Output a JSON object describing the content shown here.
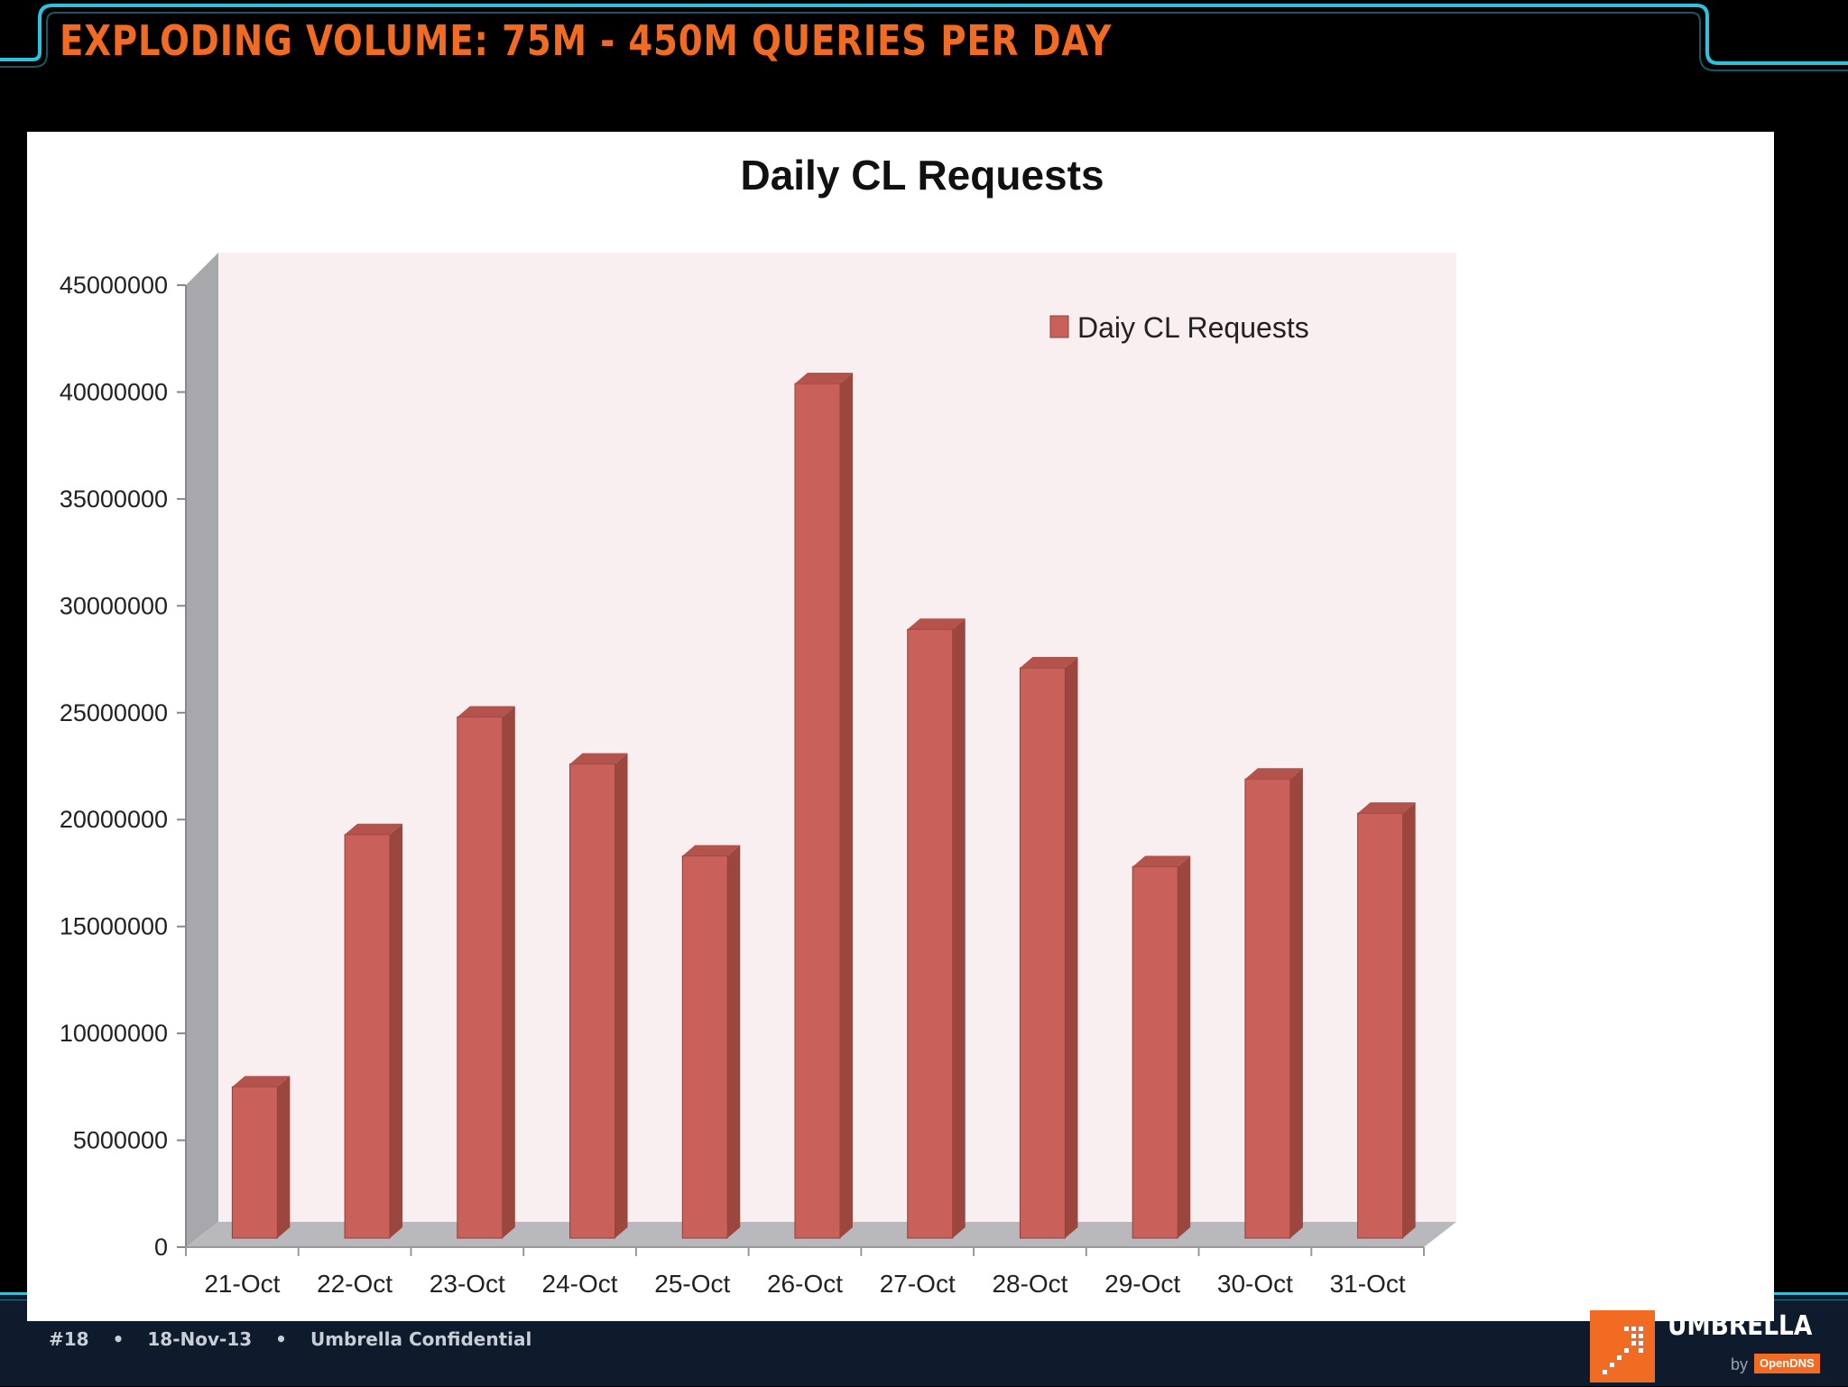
{
  "slide": {
    "title": "EXPLODING VOLUME: 75M - 450M QUERIES PER DAY",
    "footer": {
      "slide_number": "#18",
      "date": "18-Nov-13",
      "confidentiality": "Umbrella Confidential",
      "separator": "•"
    },
    "logo": {
      "wordmark": "UMBRELLA",
      "by": "by",
      "brand": "OpenDNS"
    },
    "colors": {
      "title": "#f26b22",
      "frame": "#2bc4df",
      "footer_bg": "#0d1b2c",
      "bar": "#c9605a",
      "plot_bg": "#f9eef0"
    }
  },
  "chart_data": {
    "type": "bar",
    "style": "3d-column",
    "title": "Daily CL Requests",
    "xlabel": "",
    "ylabel": "",
    "categories": [
      "21-Oct",
      "22-Oct",
      "23-Oct",
      "24-Oct",
      "25-Oct",
      "26-Oct",
      "27-Oct",
      "28-Oct",
      "29-Oct",
      "30-Oct",
      "31-Oct"
    ],
    "series": [
      {
        "name": "Daiy CL Requests",
        "values": [
          7500000,
          19300000,
          24800000,
          22600000,
          18300000,
          40400000,
          28900000,
          27100000,
          17800000,
          21900000,
          20300000
        ]
      }
    ],
    "ylim": [
      0,
      45000000
    ],
    "yticks": [
      "0",
      "5000000",
      "10000000",
      "15000000",
      "20000000",
      "25000000",
      "30000000",
      "35000000",
      "40000000",
      "45000000"
    ],
    "grid": false,
    "legend": "top-right"
  }
}
